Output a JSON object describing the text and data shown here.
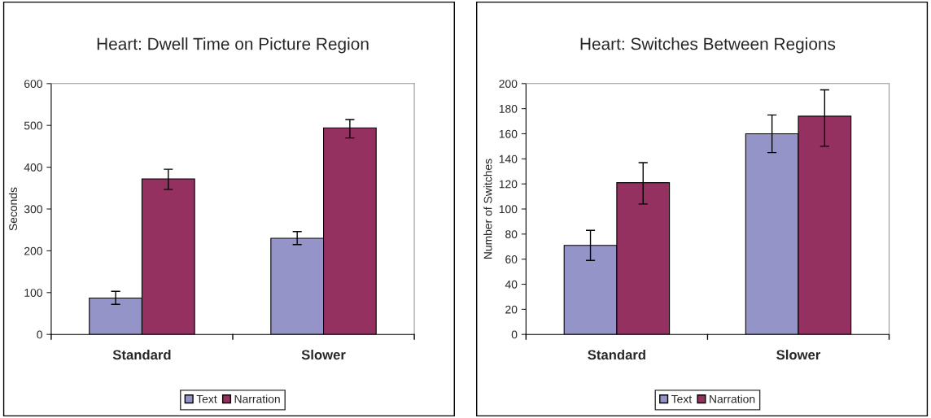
{
  "chart_data": [
    {
      "type": "bar",
      "title": "Heart: Dwell Time on Picture Region",
      "ylabel": "Seconds",
      "categories": [
        "Standard",
        "Slower"
      ],
      "series": [
        {
          "name": "Text",
          "color": "#9494c8",
          "values": [
            87,
            230
          ],
          "errors": [
            [
              72,
              103
            ],
            [
              215,
              246
            ]
          ]
        },
        {
          "name": "Narration",
          "color": "#943160",
          "values": [
            372,
            494
          ],
          "errors": [
            [
              347,
              395
            ],
            [
              470,
              514
            ]
          ]
        }
      ],
      "ylim": [
        0,
        600
      ],
      "yticks": [
        0,
        100,
        200,
        300,
        400,
        500,
        600
      ],
      "grid": false,
      "legend": "bottom"
    },
    {
      "type": "bar",
      "title": "Heart: Switches Between Regions",
      "ylabel": "Number of Switches",
      "categories": [
        "Standard",
        "Slower"
      ],
      "series": [
        {
          "name": "Text",
          "color": "#9494c8",
          "values": [
            71,
            160
          ],
          "errors": [
            [
              59,
              83
            ],
            [
              145,
              175
            ]
          ]
        },
        {
          "name": "Narration",
          "color": "#943160",
          "values": [
            121,
            174
          ],
          "errors": [
            [
              104,
              137
            ],
            [
              150,
              195
            ]
          ]
        }
      ],
      "ylim": [
        0,
        200
      ],
      "yticks": [
        0,
        20,
        40,
        60,
        80,
        100,
        120,
        140,
        160,
        180,
        200
      ],
      "grid": false,
      "legend": "bottom"
    }
  ]
}
